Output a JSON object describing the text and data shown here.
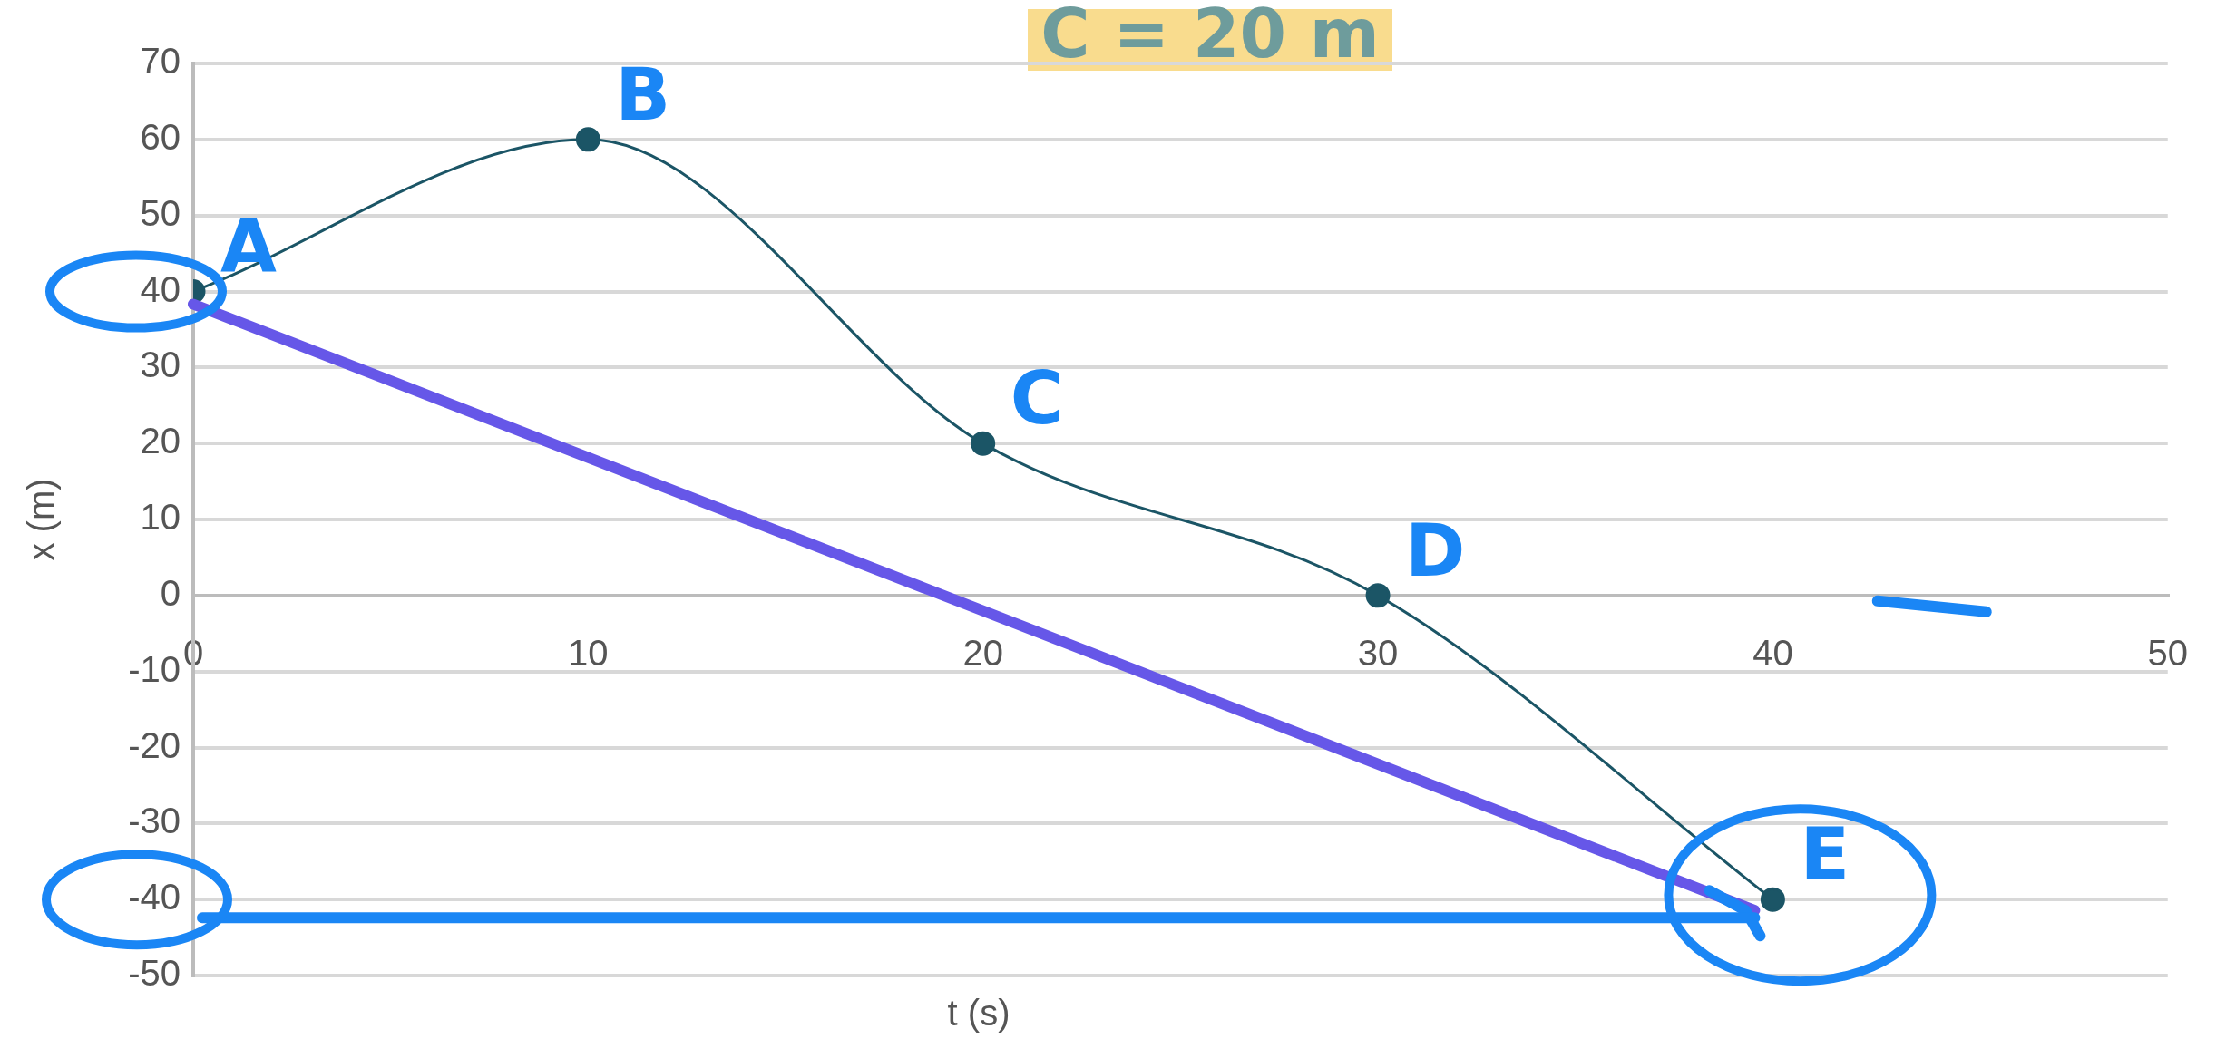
{
  "chart_data": {
    "type": "line",
    "xlabel": "t (s)",
    "ylabel": "x (m)",
    "x": [
      0,
      10,
      20,
      30,
      40
    ],
    "series": [
      {
        "color": "#1b5566",
        "values": [
          40,
          60,
          20,
          0,
          -40
        ]
      }
    ],
    "xlim": [
      0,
      50
    ],
    "xticks": [
      0,
      10,
      20,
      30,
      40,
      50
    ],
    "ylim": [
      -50,
      70
    ],
    "yticks": [
      -50,
      -40,
      -30,
      -20,
      -10,
      0,
      10,
      20,
      30,
      40,
      50,
      60,
      70
    ],
    "grid": "y",
    "legend": false,
    "marker": "circle",
    "line_style": "solid",
    "annotations": [
      "C = 20 m",
      {
        "text": "A",
        "x": 0,
        "y": 40
      },
      {
        "text": "B",
        "x": 10,
        "y": 60
      },
      {
        "text": "C",
        "x": 20,
        "y": 20
      },
      {
        "text": "D",
        "x": 30,
        "y": 0
      },
      {
        "text": "E",
        "x": 40,
        "y": -40
      }
    ]
  }
}
